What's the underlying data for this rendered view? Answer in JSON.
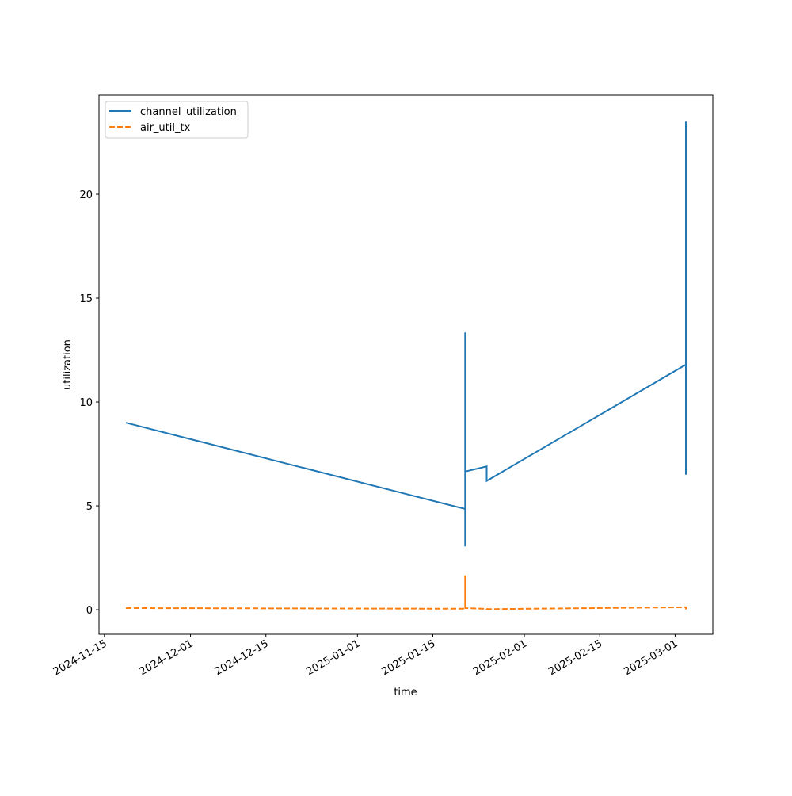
{
  "chart_data": {
    "type": "line",
    "x_label": "time",
    "y_label": "utilization",
    "x": [
      "2024-11-19",
      "2025-01-21",
      "2025-01-21",
      "2025-01-21",
      "2025-01-21",
      "2025-01-25",
      "2025-01-25",
      "2025-03-03",
      "2025-03-03",
      "2025-03-03"
    ],
    "series": [
      {
        "name": "channel_utilization",
        "color": "#1f77b4",
        "dash": "solid",
        "values": [
          9.0,
          4.85,
          13.35,
          3.05,
          6.65,
          6.9,
          6.2,
          11.8,
          23.5,
          6.5
        ]
      },
      {
        "name": "air_util_tx",
        "color": "#ff7f0e",
        "dash": "dashed",
        "values": [
          0.08,
          0.05,
          1.65,
          0.05,
          0.08,
          0.04,
          0.03,
          0.12,
          0.12,
          0.02
        ]
      }
    ],
    "xlim": [
      "2024-11-14",
      "2025-03-08"
    ],
    "xticks": [
      "2024-11-15",
      "2024-12-01",
      "2024-12-15",
      "2025-01-01",
      "2025-01-15",
      "2025-02-01",
      "2025-02-15",
      "2025-03-01"
    ],
    "ylim": [
      -1.18,
      24.77
    ],
    "yticks": [
      0,
      5,
      10,
      15,
      20
    ],
    "grid": false,
    "legend": "upper left"
  }
}
